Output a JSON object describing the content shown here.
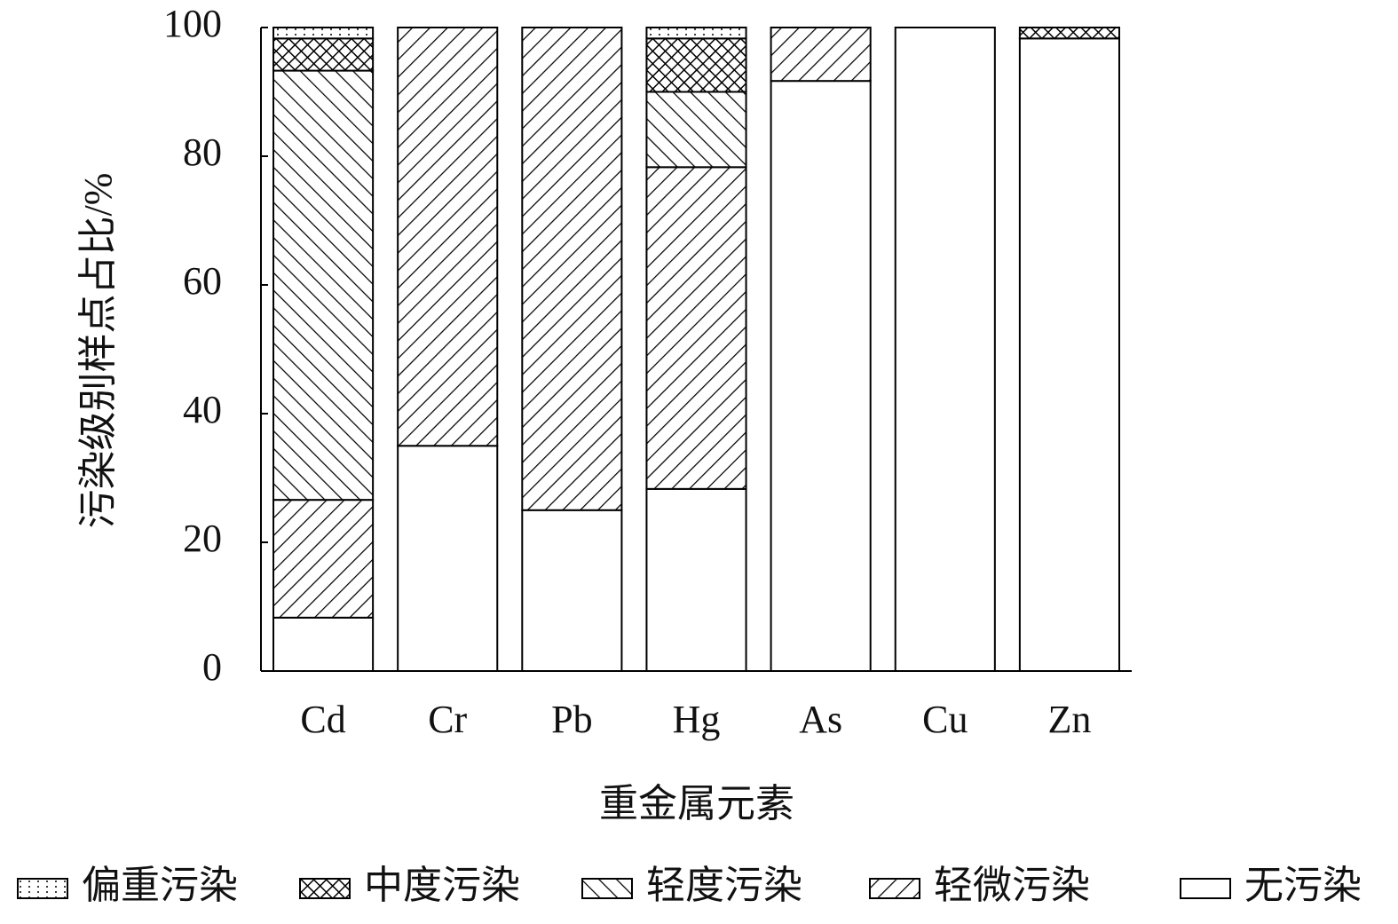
{
  "chart_data": {
    "type": "stacked-bar",
    "y_label": "污染级别样点占比/%",
    "x_label": "重金属元素",
    "categories": [
      "Cd",
      "Cr",
      "Pb",
      "Hg",
      "As",
      "Cu",
      "Zn"
    ],
    "ylim": [
      0,
      100
    ],
    "yticks": [
      0,
      20,
      40,
      60,
      80,
      100
    ],
    "legend": "bottom",
    "series": [
      {
        "name": "无污染",
        "color": "#000000",
        "pattern": "none",
        "values": [
          8.3,
          35,
          25,
          28.3,
          91.7,
          100,
          98.3
        ]
      },
      {
        "name": "轻微污染",
        "color": "#000000",
        "pattern": "slash",
        "values": [
          18.3,
          65,
          75,
          50,
          8.3,
          0,
          0
        ]
      },
      {
        "name": "轻度污染",
        "color": "#000000",
        "pattern": "backslash",
        "values": [
          66.7,
          0,
          0,
          11.7,
          0,
          0,
          0
        ]
      },
      {
        "name": "中度污染",
        "color": "#000000",
        "pattern": "crosshatch",
        "values": [
          5,
          0,
          0,
          8.3,
          0,
          0,
          1.7
        ]
      },
      {
        "name": "偏重污染",
        "color": "#000000",
        "pattern": "dots",
        "values": [
          1.7,
          0,
          0,
          1.7,
          0,
          0,
          0
        ]
      }
    ]
  }
}
